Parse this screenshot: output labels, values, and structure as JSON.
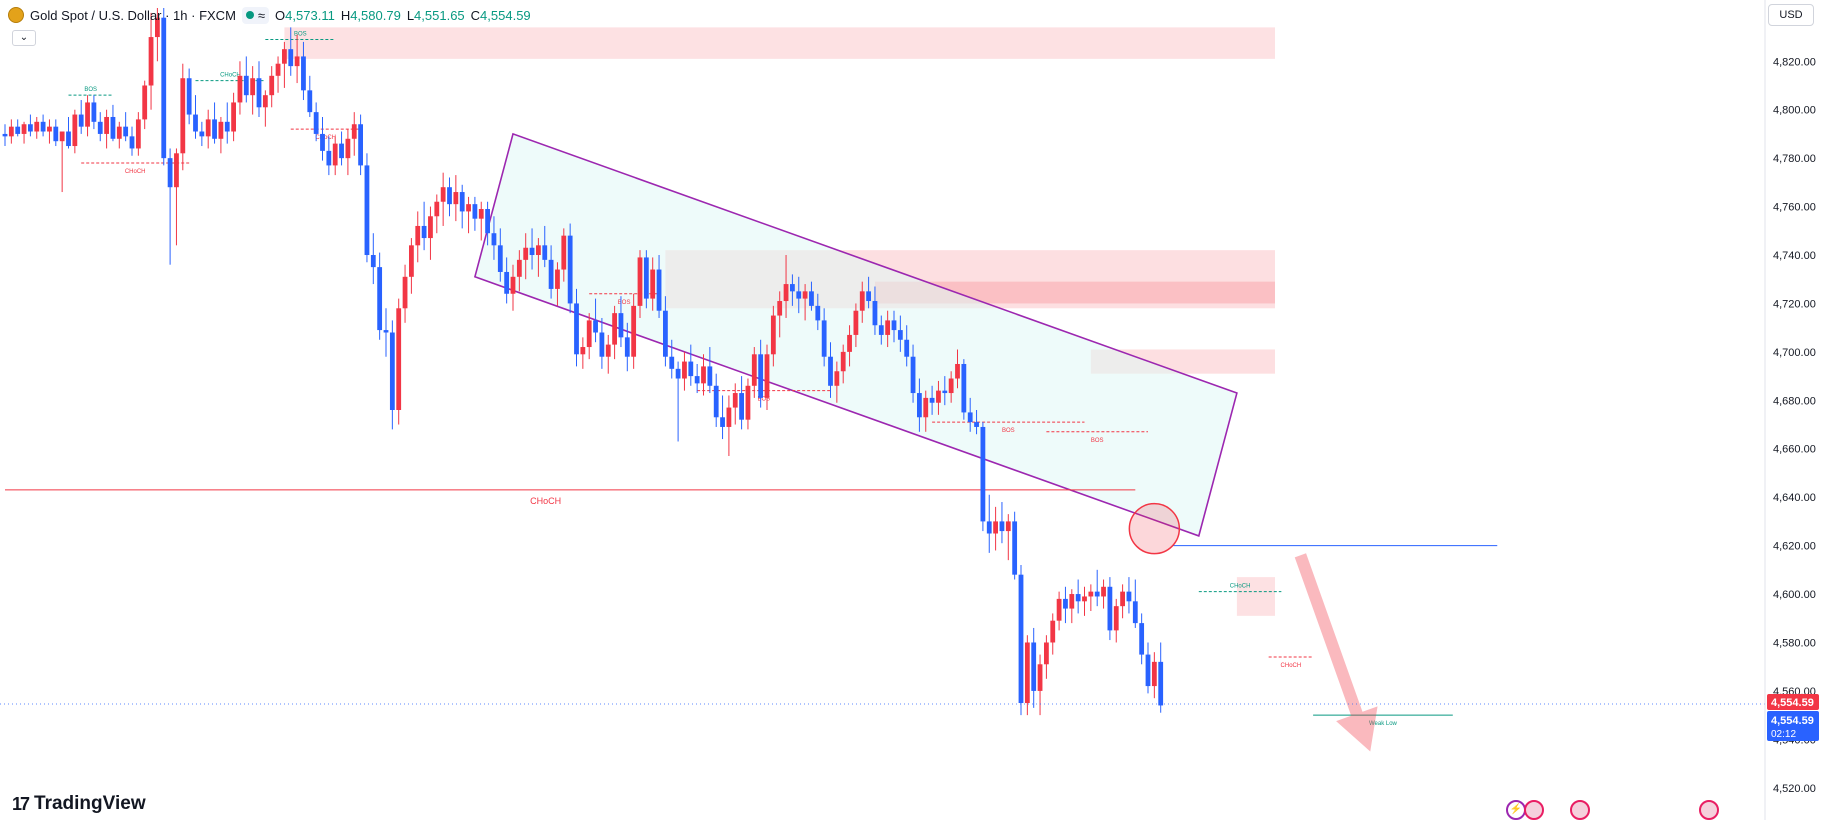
{
  "header": {
    "symbol_title": "Gold Spot / U.S. Dollar · 1h · FXCM",
    "wave_glyph": "≈",
    "ohlc": [
      {
        "label": "O",
        "value": "4,573.11"
      },
      {
        "label": "H",
        "value": "4,580.79"
      },
      {
        "label": "L",
        "value": "4,551.65"
      },
      {
        "label": "C",
        "value": "4,554.59"
      }
    ],
    "collapse_glyph": "⌄",
    "currency": "USD"
  },
  "branding": {
    "logo_mark": "17",
    "name": "TradingView"
  },
  "colors": {
    "up": "#f23645",
    "down": "#2962ff",
    "zone": "#f23645",
    "channel": "#9c27b0",
    "channel_fill": "#e0f7f5"
  },
  "chart_data": {
    "type": "candlestick",
    "symbol": "Gold Spot / U.S. Dollar",
    "interval": "1h",
    "ylim": [
      4510,
      4842
    ],
    "y_ticks": [
      4520,
      4540,
      4560,
      4580,
      4600,
      4620,
      4640,
      4660,
      4680,
      4700,
      4720,
      4740,
      4760,
      4780,
      4800,
      4820
    ],
    "y_tick_labels": [
      "4,520.00",
      "4,540.00",
      "4,560.00",
      "4,580.00",
      "4,600.00",
      "4,620.00",
      "4,640.00",
      "4,660.00",
      "4,680.00",
      "4,700.00",
      "4,720.00",
      "4,740.00",
      "4,760.00",
      "4,780.00",
      "4,800.00",
      "4,820.00"
    ],
    "last_price": {
      "label": "4,554.59",
      "value": 4554.59
    },
    "current_price": {
      "label": "4,554.59",
      "value": 4554.59,
      "countdown": "02:12"
    },
    "candles": [
      [
        4790,
        4794,
        4785,
        4789
      ],
      [
        4789,
        4796,
        4786,
        4793
      ],
      [
        4793,
        4796,
        4789,
        4790
      ],
      [
        4790,
        4795,
        4786,
        4794
      ],
      [
        4794,
        4798,
        4789,
        4791
      ],
      [
        4791,
        4797,
        4788,
        4795
      ],
      [
        4795,
        4798,
        4789,
        4791
      ],
      [
        4791,
        4796,
        4786,
        4793
      ],
      [
        4793,
        4796,
        4785,
        4787
      ],
      [
        4787,
        4791,
        4766,
        4791
      ],
      [
        4791,
        4797,
        4784,
        4785
      ],
      [
        4785,
        4800,
        4782,
        4798
      ],
      [
        4798,
        4804,
        4790,
        4793
      ],
      [
        4793,
        4806,
        4789,
        4803
      ],
      [
        4803,
        4806,
        4792,
        4795
      ],
      [
        4795,
        4799,
        4787,
        4790
      ],
      [
        4790,
        4800,
        4784,
        4797
      ],
      [
        4797,
        4802,
        4787,
        4788
      ],
      [
        4788,
        4795,
        4784,
        4793
      ],
      [
        4793,
        4799,
        4787,
        4789
      ],
      [
        4789,
        4793,
        4781,
        4784
      ],
      [
        4784,
        4799,
        4781,
        4796
      ],
      [
        4796,
        4812,
        4792,
        4810
      ],
      [
        4810,
        4840,
        4800,
        4830
      ],
      [
        4830,
        4842,
        4820,
        4838
      ],
      [
        4838,
        4842,
        4777,
        4780
      ],
      [
        4780,
        4784,
        4736,
        4768
      ],
      [
        4768,
        4784,
        4744,
        4782
      ],
      [
        4782,
        4819,
        4775,
        4813
      ],
      [
        4813,
        4817,
        4794,
        4798
      ],
      [
        4798,
        4806,
        4788,
        4791
      ],
      [
        4791,
        4795,
        4785,
        4789
      ],
      [
        4789,
        4800,
        4784,
        4796
      ],
      [
        4796,
        4803,
        4786,
        4788
      ],
      [
        4788,
        4797,
        4782,
        4795
      ],
      [
        4795,
        4803,
        4786,
        4791
      ],
      [
        4791,
        4807,
        4787,
        4803
      ],
      [
        4803,
        4820,
        4798,
        4814
      ],
      [
        4814,
        4822,
        4803,
        4806
      ],
      [
        4806,
        4818,
        4798,
        4813
      ],
      [
        4813,
        4820,
        4797,
        4801
      ],
      [
        4801,
        4808,
        4793,
        4806
      ],
      [
        4806,
        4818,
        4801,
        4814
      ],
      [
        4814,
        4822,
        4807,
        4819
      ],
      [
        4819,
        4828,
        4809,
        4825
      ],
      [
        4825,
        4834,
        4814,
        4818
      ],
      [
        4818,
        4831,
        4811,
        4822
      ],
      [
        4822,
        4828,
        4804,
        4808
      ],
      [
        4808,
        4814,
        4797,
        4799
      ],
      [
        4799,
        4803,
        4787,
        4790
      ],
      [
        4790,
        4797,
        4779,
        4783
      ],
      [
        4783,
        4789,
        4773,
        4777
      ],
      [
        4777,
        4789,
        4773,
        4786
      ],
      [
        4786,
        4791,
        4777,
        4780
      ],
      [
        4780,
        4792,
        4773,
        4788
      ],
      [
        4788,
        4799,
        4781,
        4794
      ],
      [
        4794,
        4798,
        4773,
        4777
      ],
      [
        4777,
        4782,
        4737,
        4740
      ],
      [
        4740,
        4749,
        4728,
        4735
      ],
      [
        4735,
        4741,
        4705,
        4709
      ],
      [
        4709,
        4718,
        4698,
        4708
      ],
      [
        4708,
        4713,
        4668,
        4676
      ],
      [
        4676,
        4722,
        4670,
        4718
      ],
      [
        4718,
        4736,
        4712,
        4731
      ],
      [
        4731,
        4747,
        4724,
        4744
      ],
      [
        4744,
        4758,
        4737,
        4752
      ],
      [
        4752,
        4762,
        4742,
        4747
      ],
      [
        4747,
        4760,
        4738,
        4756
      ],
      [
        4756,
        4765,
        4749,
        4762
      ],
      [
        4762,
        4774,
        4752,
        4768
      ],
      [
        4768,
        4772,
        4756,
        4761
      ],
      [
        4761,
        4773,
        4754,
        4766
      ],
      [
        4766,
        4769,
        4751,
        4758
      ],
      [
        4758,
        4764,
        4749,
        4761
      ],
      [
        4761,
        4764,
        4750,
        4755
      ],
      [
        4755,
        4762,
        4746,
        4759
      ],
      [
        4759,
        4762,
        4744,
        4749
      ],
      [
        4749,
        4756,
        4738,
        4744
      ],
      [
        4744,
        4751,
        4729,
        4733
      ],
      [
        4733,
        4739,
        4720,
        4724
      ],
      [
        4724,
        4736,
        4717,
        4731
      ],
      [
        4731,
        4742,
        4725,
        4738
      ],
      [
        4738,
        4749,
        4730,
        4743
      ],
      [
        4743,
        4751,
        4734,
        4740
      ],
      [
        4740,
        4747,
        4731,
        4744
      ],
      [
        4744,
        4752,
        4735,
        4738
      ],
      [
        4738,
        4744,
        4722,
        4726
      ],
      [
        4726,
        4737,
        4719,
        4734
      ],
      [
        4734,
        4751,
        4729,
        4748
      ],
      [
        4748,
        4753,
        4716,
        4720
      ],
      [
        4720,
        4726,
        4694,
        4699
      ],
      [
        4699,
        4706,
        4693,
        4702
      ],
      [
        4702,
        4716,
        4697,
        4713
      ],
      [
        4713,
        4722,
        4704,
        4708
      ],
      [
        4708,
        4714,
        4693,
        4698
      ],
      [
        4698,
        4707,
        4691,
        4703
      ],
      [
        4703,
        4719,
        4697,
        4716
      ],
      [
        4716,
        4723,
        4702,
        4706
      ],
      [
        4706,
        4712,
        4692,
        4698
      ],
      [
        4698,
        4724,
        4693,
        4719
      ],
      [
        4719,
        4742,
        4714,
        4739
      ],
      [
        4739,
        4742,
        4718,
        4722
      ],
      [
        4722,
        4739,
        4717,
        4734
      ],
      [
        4734,
        4740,
        4714,
        4717
      ],
      [
        4717,
        4723,
        4694,
        4698
      ],
      [
        4698,
        4705,
        4689,
        4693
      ],
      [
        4693,
        4696,
        4663,
        4689
      ],
      [
        4689,
        4700,
        4684,
        4696
      ],
      [
        4696,
        4703,
        4686,
        4690
      ],
      [
        4690,
        4695,
        4683,
        4687
      ],
      [
        4687,
        4699,
        4682,
        4694
      ],
      [
        4694,
        4702,
        4683,
        4686
      ],
      [
        4686,
        4691,
        4669,
        4673
      ],
      [
        4673,
        4682,
        4664,
        4669
      ],
      [
        4669,
        4682,
        4657,
        4677
      ],
      [
        4677,
        4687,
        4670,
        4683
      ],
      [
        4683,
        4690,
        4668,
        4672
      ],
      [
        4672,
        4689,
        4668,
        4686
      ],
      [
        4686,
        4702,
        4681,
        4699
      ],
      [
        4699,
        4705,
        4677,
        4681
      ],
      [
        4681,
        4703,
        4676,
        4699
      ],
      [
        4699,
        4719,
        4694,
        4715
      ],
      [
        4715,
        4725,
        4706,
        4721
      ],
      [
        4721,
        4740,
        4714,
        4728
      ],
      [
        4728,
        4732,
        4719,
        4725
      ],
      [
        4725,
        4731,
        4716,
        4722
      ],
      [
        4722,
        4728,
        4713,
        4725
      ],
      [
        4725,
        4729,
        4717,
        4719
      ],
      [
        4719,
        4724,
        4709,
        4713
      ],
      [
        4713,
        4718,
        4694,
        4698
      ],
      [
        4698,
        4704,
        4681,
        4686
      ],
      [
        4686,
        4696,
        4679,
        4692
      ],
      [
        4692,
        4703,
        4687,
        4700
      ],
      [
        4700,
        4711,
        4694,
        4707
      ],
      [
        4707,
        4720,
        4702,
        4717
      ],
      [
        4717,
        4729,
        4712,
        4725
      ],
      [
        4725,
        4731,
        4718,
        4721
      ],
      [
        4721,
        4727,
        4707,
        4711
      ],
      [
        4711,
        4715,
        4703,
        4707
      ],
      [
        4707,
        4717,
        4702,
        4713
      ],
      [
        4713,
        4717,
        4704,
        4709
      ],
      [
        4709,
        4715,
        4700,
        4705
      ],
      [
        4705,
        4711,
        4694,
        4698
      ],
      [
        4698,
        4703,
        4679,
        4683
      ],
      [
        4683,
        4689,
        4667,
        4673
      ],
      [
        4673,
        4684,
        4667,
        4681
      ],
      [
        4681,
        4686,
        4674,
        4679
      ],
      [
        4679,
        4688,
        4674,
        4684
      ],
      [
        4684,
        4690,
        4678,
        4683
      ],
      [
        4683,
        4692,
        4679,
        4689
      ],
      [
        4689,
        4701,
        4685,
        4695
      ],
      [
        4695,
        4697,
        4672,
        4675
      ],
      [
        4675,
        4681,
        4667,
        4671
      ],
      [
        4671,
        4676,
        4666,
        4669
      ],
      [
        4669,
        4671,
        4626,
        4630
      ],
      [
        4630,
        4641,
        4617,
        4625
      ],
      [
        4625,
        4636,
        4618,
        4630
      ],
      [
        4630,
        4638,
        4621,
        4626
      ],
      [
        4626,
        4633,
        4614,
        4630
      ],
      [
        4630,
        4634,
        4606,
        4608
      ],
      [
        4608,
        4612,
        4550,
        4555
      ],
      [
        4555,
        4583,
        4550,
        4580
      ],
      [
        4580,
        4586,
        4553,
        4560
      ],
      [
        4560,
        4575,
        4550,
        4571
      ],
      [
        4571,
        4583,
        4565,
        4580
      ],
      [
        4580,
        4592,
        4575,
        4589
      ],
      [
        4589,
        4601,
        4585,
        4598
      ],
      [
        4598,
        4603,
        4588,
        4594
      ],
      [
        4594,
        4602,
        4588,
        4600
      ],
      [
        4600,
        4606,
        4592,
        4597
      ],
      [
        4597,
        4603,
        4591,
        4599
      ],
      [
        4599,
        4604,
        4593,
        4601
      ],
      [
        4601,
        4610,
        4595,
        4599
      ],
      [
        4599,
        4606,
        4594,
        4603
      ],
      [
        4603,
        4607,
        4581,
        4585
      ],
      [
        4585,
        4598,
        4580,
        4595
      ],
      [
        4595,
        4604,
        4590,
        4601
      ],
      [
        4601,
        4607,
        4592,
        4597
      ],
      [
        4597,
        4606,
        4586,
        4588
      ],
      [
        4588,
        4592,
        4571,
        4575
      ],
      [
        4575,
        4580,
        4559,
        4562
      ],
      [
        4562,
        4576,
        4557,
        4572
      ],
      [
        4572,
        4580,
        4551,
        4554
      ]
    ],
    "zones": [
      {
        "price_from": 4821,
        "price_to": 4834,
        "start_index": 44,
        "end_index": 200,
        "opacity": 0.15
      },
      {
        "price_from": 4718,
        "price_to": 4742,
        "start_index": 104,
        "end_index": 200,
        "opacity": 0.16
      },
      {
        "price_from": 4720,
        "price_to": 4729,
        "start_index": 137,
        "end_index": 200,
        "opacity": 0.18
      },
      {
        "price_from": 4691,
        "price_to": 4701,
        "start_index": 171,
        "end_index": 200,
        "opacity": 0.16
      },
      {
        "price_from": 4591,
        "price_to": 4607,
        "start_index": 194,
        "end_index": 200,
        "opacity": 0.15
      }
    ],
    "channel": {
      "upper": [
        {
          "i": 74,
          "p": 4731
        },
        {
          "i": 80,
          "p": 4790
        },
        {
          "i": 194,
          "p": 4683
        },
        {
          "i": 188,
          "p": 4624
        }
      ],
      "stroke": "#9c27b0",
      "fill": "#e0f7f5"
    },
    "horizontal_lines": [
      {
        "price": 4643,
        "start_index": 0,
        "end_index": 178,
        "color": "#f23645",
        "label": "CHoCH"
      },
      {
        "price": 4620,
        "start_index": 184,
        "end_index": 235,
        "color": "#2962ff",
        "label": ""
      }
    ],
    "structure_marks": [
      {
        "label": "BOS",
        "price": 4806,
        "start_index": 10,
        "end_index": 17,
        "color": "#089981"
      },
      {
        "label": "CHoCH",
        "price": 4778,
        "start_index": 12,
        "end_index": 29,
        "color": "#f23645"
      },
      {
        "label": "CHoCH",
        "price": 4812,
        "start_index": 30,
        "end_index": 41,
        "color": "#089981"
      },
      {
        "label": "BOS",
        "price": 4829,
        "start_index": 41,
        "end_index": 52,
        "color": "#089981"
      },
      {
        "label": "CHoCH",
        "price": 4792,
        "start_index": 45,
        "end_index": 56,
        "color": "#f23645"
      },
      {
        "label": "BOS",
        "price": 4724,
        "start_index": 92,
        "end_index": 103,
        "color": "#f23645"
      },
      {
        "label": "BOS",
        "price": 4684,
        "start_index": 109,
        "end_index": 130,
        "color": "#f23645"
      },
      {
        "label": "BOS",
        "price": 4671,
        "start_index": 146,
        "end_index": 170,
        "color": "#f23645"
      },
      {
        "label": "BOS",
        "price": 4667,
        "start_index": 164,
        "end_index": 180,
        "color": "#f23645"
      },
      {
        "label": "CHoCH",
        "price": 4601,
        "start_index": 188,
        "end_index": 201,
        "color": "#089981"
      },
      {
        "label": "CHoCH",
        "price": 4574,
        "start_index": 199,
        "end_index": 206,
        "color": "#f23645"
      },
      {
        "label": "Weak Low",
        "price": 4550,
        "start_index": 206,
        "end_index": 228,
        "color": "#089981"
      }
    ],
    "highlight_circle": {
      "index": 181,
      "price": 4627
    },
    "arrow": {
      "from_index": 204,
      "from_price": 4616,
      "to_index": 215,
      "to_price": 4535
    }
  }
}
